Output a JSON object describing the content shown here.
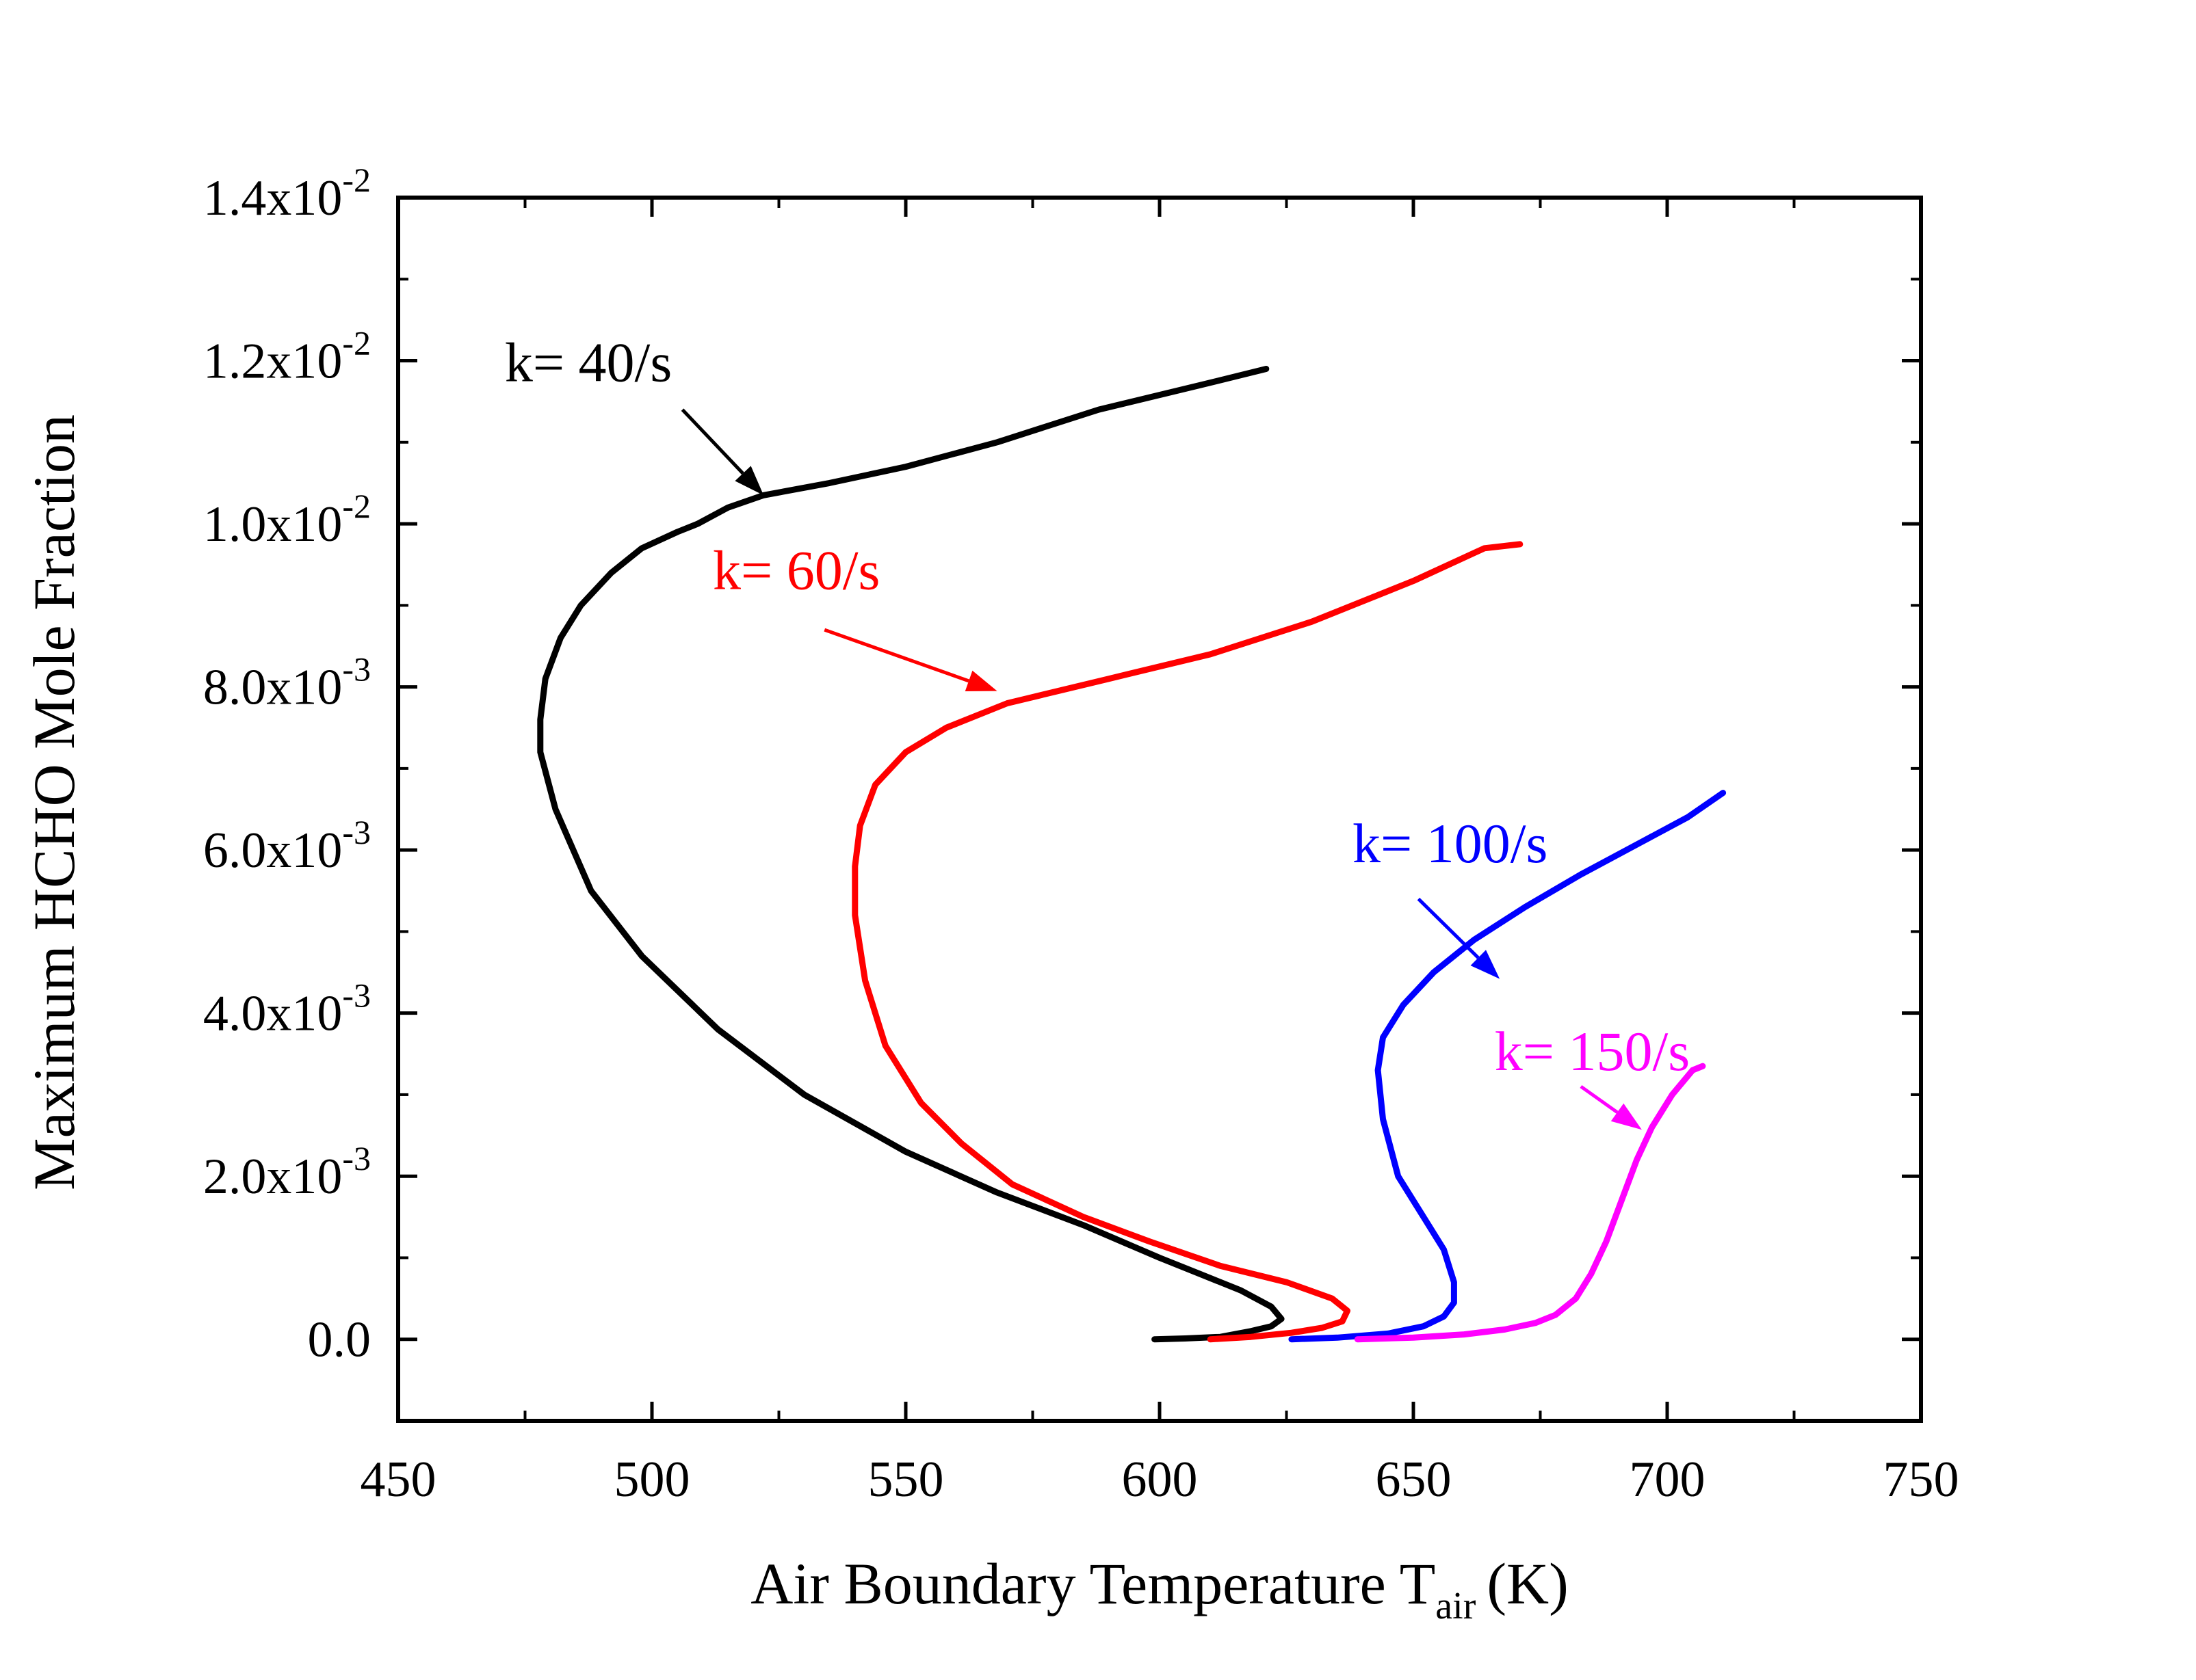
{
  "chart_data": {
    "type": "line",
    "xlabel": {
      "main": "Air Boundary Temperature T",
      "sub": "air",
      "unit": "(K)"
    },
    "ylabel": "Maximum HCHO Mole Fraction",
    "xlim": [
      450,
      750
    ],
    "ylim": [
      -0.001,
      0.014
    ],
    "x_ticks": [
      {
        "value": 450,
        "label": "450"
      },
      {
        "value": 500,
        "label": "500"
      },
      {
        "value": 550,
        "label": "550"
      },
      {
        "value": 600,
        "label": "600"
      },
      {
        "value": 650,
        "label": "650"
      },
      {
        "value": 700,
        "label": "700"
      },
      {
        "value": 750,
        "label": "750"
      }
    ],
    "y_ticks": [
      {
        "value": 0.0,
        "mantissa": "0.0",
        "exp": ""
      },
      {
        "value": 0.002,
        "mantissa": "2.0x10",
        "exp": "-3"
      },
      {
        "value": 0.004,
        "mantissa": "4.0x10",
        "exp": "-3"
      },
      {
        "value": 0.006,
        "mantissa": "6.0x10",
        "exp": "-3"
      },
      {
        "value": 0.008,
        "mantissa": "8.0x10",
        "exp": "-3"
      },
      {
        "value": 0.01,
        "mantissa": "1.0x10",
        "exp": "-2"
      },
      {
        "value": 0.012,
        "mantissa": "1.2x10",
        "exp": "-2"
      },
      {
        "value": 0.014,
        "mantissa": "1.4x10",
        "exp": "-2"
      }
    ],
    "grid": false,
    "series": [
      {
        "label": "k= 40/s",
        "color": "#000000",
        "label_pos": {
          "x": 471,
          "y": 0.01175
        },
        "arrow": {
          "from": [
            506,
            0.0114
          ],
          "to": [
            522,
            0.01035
          ]
        },
        "points": [
          [
            599,
            0.0
          ],
          [
            605,
            1e-05
          ],
          [
            612,
            3e-05
          ],
          [
            618,
            0.0001
          ],
          [
            622,
            0.00016
          ],
          [
            624,
            0.00025
          ],
          [
            622,
            0.0004
          ],
          [
            616,
            0.0006
          ],
          [
            608,
            0.0008
          ],
          [
            600,
            0.001
          ],
          [
            585,
            0.0014
          ],
          [
            568,
            0.0018
          ],
          [
            550,
            0.0023
          ],
          [
            530,
            0.003
          ],
          [
            513,
            0.0038
          ],
          [
            498,
            0.0047
          ],
          [
            488,
            0.0055
          ],
          [
            481,
            0.0065
          ],
          [
            478,
            0.0072
          ],
          [
            478,
            0.0076
          ],
          [
            479,
            0.0081
          ],
          [
            482,
            0.0086
          ],
          [
            486,
            0.009
          ],
          [
            492,
            0.0094
          ],
          [
            498,
            0.0097
          ],
          [
            505,
            0.0099
          ],
          [
            509,
            0.01
          ],
          [
            515,
            0.0102
          ],
          [
            522,
            0.01035
          ],
          [
            535,
            0.0105
          ],
          [
            550,
            0.0107
          ],
          [
            568,
            0.011
          ],
          [
            588,
            0.0114
          ],
          [
            608,
            0.0117
          ],
          [
            621,
            0.0119
          ]
        ]
      },
      {
        "label": "k= 60/s",
        "color": "#ff0000",
        "label_pos": {
          "x": 512,
          "y": 0.0092
        },
        "arrow": {
          "from": [
            534,
            0.0087
          ],
          "to": [
            568,
            0.00795
          ]
        },
        "points": [
          [
            610,
            0.0
          ],
          [
            618,
            3e-05
          ],
          [
            626,
            8e-05
          ],
          [
            632,
            0.00014
          ],
          [
            636,
            0.00022
          ],
          [
            637,
            0.00035
          ],
          [
            634,
            0.0005
          ],
          [
            625,
            0.0007
          ],
          [
            612,
            0.0009
          ],
          [
            598,
            0.0012
          ],
          [
            585,
            0.0015
          ],
          [
            571,
            0.0019
          ],
          [
            561,
            0.0024
          ],
          [
            553,
            0.0029
          ],
          [
            546,
            0.0036
          ],
          [
            542,
            0.0044
          ],
          [
            540,
            0.0052
          ],
          [
            540,
            0.0058
          ],
          [
            541,
            0.0063
          ],
          [
            544,
            0.0068
          ],
          [
            550,
            0.0072
          ],
          [
            558,
            0.0075
          ],
          [
            570,
            0.0078
          ],
          [
            590,
            0.0081
          ],
          [
            610,
            0.0084
          ],
          [
            630,
            0.0088
          ],
          [
            650,
            0.0093
          ],
          [
            664,
            0.0097
          ],
          [
            671,
            0.00975
          ]
        ]
      },
      {
        "label": "k= 100/s",
        "color": "#0000ff",
        "label_pos": {
          "x": 638,
          "y": 0.00585
        },
        "arrow": {
          "from": [
            651,
            0.0054
          ],
          "to": [
            667,
            0.00442
          ]
        },
        "points": [
          [
            626,
            0.0
          ],
          [
            635,
            2e-05
          ],
          [
            645,
            7e-05
          ],
          [
            652,
            0.00016
          ],
          [
            656,
            0.00028
          ],
          [
            658,
            0.00045
          ],
          [
            658,
            0.0007
          ],
          [
            656,
            0.0011
          ],
          [
            652,
            0.0015
          ],
          [
            647,
            0.002
          ],
          [
            644,
            0.0027
          ],
          [
            643,
            0.0033
          ],
          [
            644,
            0.0037
          ],
          [
            648,
            0.0041
          ],
          [
            654,
            0.0045
          ],
          [
            662,
            0.0049
          ],
          [
            672,
            0.0053
          ],
          [
            683,
            0.0057
          ],
          [
            695,
            0.0061
          ],
          [
            704,
            0.0064
          ],
          [
            711,
            0.0067
          ]
        ]
      },
      {
        "label": "k= 150/s",
        "color": "#ff00ff",
        "label_pos": {
          "x": 666,
          "y": 0.0033
        },
        "arrow": {
          "from": [
            683,
            0.0031
          ],
          "to": [
            695,
            0.00257
          ]
        },
        "points": [
          [
            639,
            0.0
          ],
          [
            650,
            2e-05
          ],
          [
            660,
            6e-05
          ],
          [
            668,
            0.00012
          ],
          [
            674,
            0.0002
          ],
          [
            678,
            0.0003
          ],
          [
            682,
            0.0005
          ],
          [
            685,
            0.0008
          ],
          [
            688,
            0.0012
          ],
          [
            691,
            0.0017
          ],
          [
            694,
            0.0022
          ],
          [
            697,
            0.0026
          ],
          [
            701,
            0.003
          ],
          [
            705,
            0.0033
          ],
          [
            707,
            0.00335
          ]
        ]
      }
    ]
  }
}
